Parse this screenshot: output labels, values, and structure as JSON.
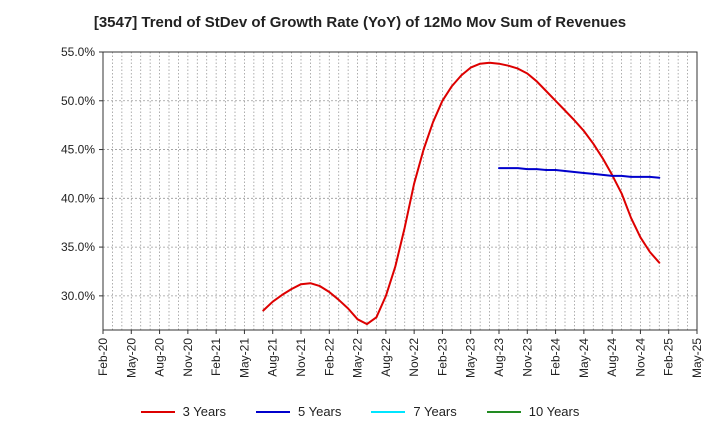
{
  "chart_data": {
    "type": "line",
    "title": "[3547]  Trend of StDev of Growth Rate (YoY) of 12Mo Mov Sum of Revenues",
    "xlabel": "",
    "ylabel": "",
    "ylim": [
      26.5,
      55.0
    ],
    "y_ticks": [
      30.0,
      35.0,
      40.0,
      45.0,
      50.0,
      55.0
    ],
    "y_tick_labels": [
      "30.0%",
      "35.0%",
      "40.0%",
      "45.0%",
      "50.0%",
      "55.0%"
    ],
    "x_tick_labels": [
      "Feb-20",
      "May-20",
      "Aug-20",
      "Nov-20",
      "Feb-21",
      "May-21",
      "Aug-21",
      "Nov-21",
      "Feb-22",
      "May-22",
      "Aug-22",
      "Nov-22",
      "Feb-23",
      "May-23",
      "Aug-23",
      "Nov-23",
      "Feb-24",
      "May-24",
      "Aug-24",
      "Nov-24",
      "Feb-25",
      "May-25"
    ],
    "grid": true,
    "legend_position": "bottom",
    "series": [
      {
        "name": "3 Years",
        "color": "#dd0000",
        "start_month_index": 17,
        "values": [
          28.5,
          29.4,
          30.1,
          30.7,
          31.2,
          31.3,
          31.0,
          30.4,
          29.6,
          28.7,
          27.6,
          27.1,
          27.8,
          30.0,
          33.0,
          37.0,
          41.5,
          45.0,
          47.8,
          50.0,
          51.5,
          52.6,
          53.4,
          53.8,
          53.9,
          53.8,
          53.6,
          53.3,
          52.8,
          52.0,
          51.0,
          50.0,
          49.0,
          48.0,
          46.9,
          45.6,
          44.1,
          42.4,
          40.5,
          38.0,
          36.0,
          34.5,
          33.4
        ]
      },
      {
        "name": "5 Years",
        "color": "#0000cc",
        "start_month_index": 42,
        "values": [
          43.1,
          43.1,
          43.1,
          43.0,
          43.0,
          42.9,
          42.9,
          42.8,
          42.7,
          42.6,
          42.5,
          42.4,
          42.3,
          42.3,
          42.2,
          42.2,
          42.2,
          42.1
        ]
      },
      {
        "name": "7 Years",
        "color": "#00e5ff",
        "start_month_index": 0,
        "values": []
      },
      {
        "name": "10 Years",
        "color": "#228b22",
        "start_month_index": 0,
        "values": []
      }
    ]
  }
}
